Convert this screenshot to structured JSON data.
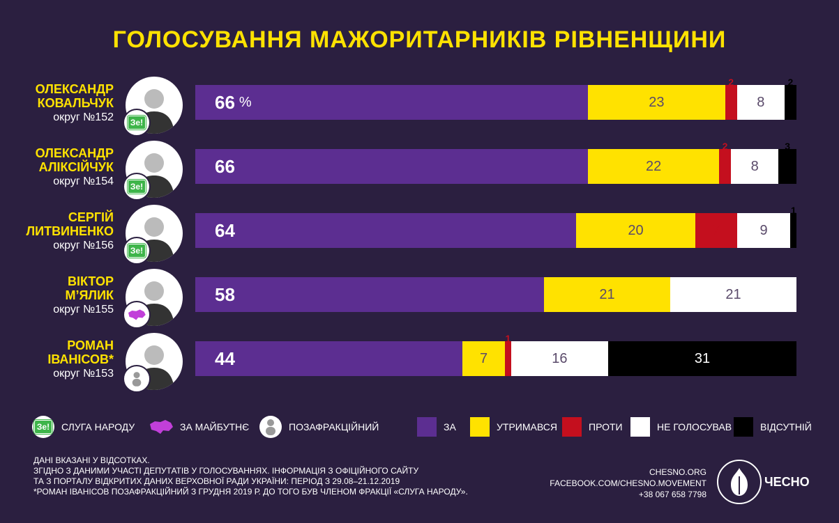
{
  "title": "ГОЛОСУВАННЯ МАЖОРИТАРНИКІВ РІВНЕНЩИНИ",
  "colors": {
    "for": "#5c2e91",
    "abstained": "#ffe200",
    "against": "#c40f1e",
    "not_voted": "#ffffff",
    "absent": "#000000",
    "background": "#2b1f40",
    "accent": "#ffe200"
  },
  "chart_data": {
    "type": "bar",
    "stacked": true,
    "orientation": "horizontal",
    "unit": "%",
    "categories": [
      "ОЛЕКСАНДР КОВАЛЬЧУК",
      "ОЛЕКСАНДР АЛІКСІЙЧУК",
      "СЕРГІЙ ЛИТВИНЕНКО",
      "ВІКТОР М’ЯЛИК",
      "РОМАН ІВАНІСОВ*"
    ],
    "series": [
      {
        "name": "ЗА",
        "values": [
          66,
          66,
          64,
          58,
          44
        ]
      },
      {
        "name": "УТРИМАВСЯ",
        "values": [
          23,
          22,
          20,
          21,
          7
        ]
      },
      {
        "name": "ПРОТИ",
        "values": [
          2,
          2,
          7,
          0,
          1
        ]
      },
      {
        "name": "НЕ ГОЛОСУВАВ",
        "values": [
          8,
          8,
          9,
          21,
          16
        ]
      },
      {
        "name": "ВІДСУТНІЙ",
        "values": [
          2,
          3,
          1,
          0,
          31
        ]
      }
    ]
  },
  "deputies": [
    {
      "name_line1": "ОЛЕКСАНДР",
      "name_line2": "КОВАЛЬЧУК",
      "district": "округ №152",
      "faction": "ze",
      "show_pct": true
    },
    {
      "name_line1": "ОЛЕКСАНДР",
      "name_line2": "АЛІКСІЙЧУК",
      "district": "округ №154",
      "faction": "ze",
      "show_pct": false
    },
    {
      "name_line1": "СЕРГІЙ",
      "name_line2": "ЛИТВИНЕНКО",
      "district": "округ №156",
      "faction": "ze",
      "show_pct": false
    },
    {
      "name_line1": "ВІКТОР",
      "name_line2": "М’ЯЛИК",
      "district": "округ №155",
      "faction": "future",
      "show_pct": false
    },
    {
      "name_line1": "РОМАН",
      "name_line2": "ІВАНІСОВ*",
      "district": "округ №153",
      "faction": "none",
      "show_pct": false
    }
  ],
  "pct_sign": "%",
  "ze_badge_text": "Зе!",
  "faction_legend": {
    "ze": "СЛУГА НАРОДУ",
    "future": "ЗА МАЙБУТНЄ",
    "none": "ПОЗАФРАКЦІЙНИЙ"
  },
  "vote_legend": [
    "ЗА",
    "УТРИМАВСЯ",
    "ПРОТИ",
    "НЕ ГОЛОСУВАВ",
    "ВІДСУТНІЙ"
  ],
  "footnote": [
    "ДАНІ ВКАЗАНІ У ВІДСОТКАХ.",
    "ЗГІДНО З ДАНИМИ УЧАСТІ ДЕПУТАТІВ У ГОЛОСУВАННЯХ. ІНФОРМАЦІЯ З ОФІЦІЙНОГО САЙТУ",
    "ТА З ПОРТАЛУ ВІДКРИТИХ ДАНИХ ВЕРХОВНОЇ РАДИ УКРАЇНИ: ПЕРІОД З 29.08–21.12.2019",
    "*РОМАН ІВАНІСОВ ПОЗАФРАКЦІЙНИЙ З ГРУДНЯ 2019 Р. ДО ТОГО БУВ ЧЛЕНОМ ФРАКЦІЇ «СЛУГА НАРОДУ»."
  ],
  "contacts": [
    "CHESNO.ORG",
    "FACEBOOK.COM/CHESNO.MOVEMENT",
    "+38 067 658 7798"
  ],
  "logo_text": "ЧЕСНО"
}
